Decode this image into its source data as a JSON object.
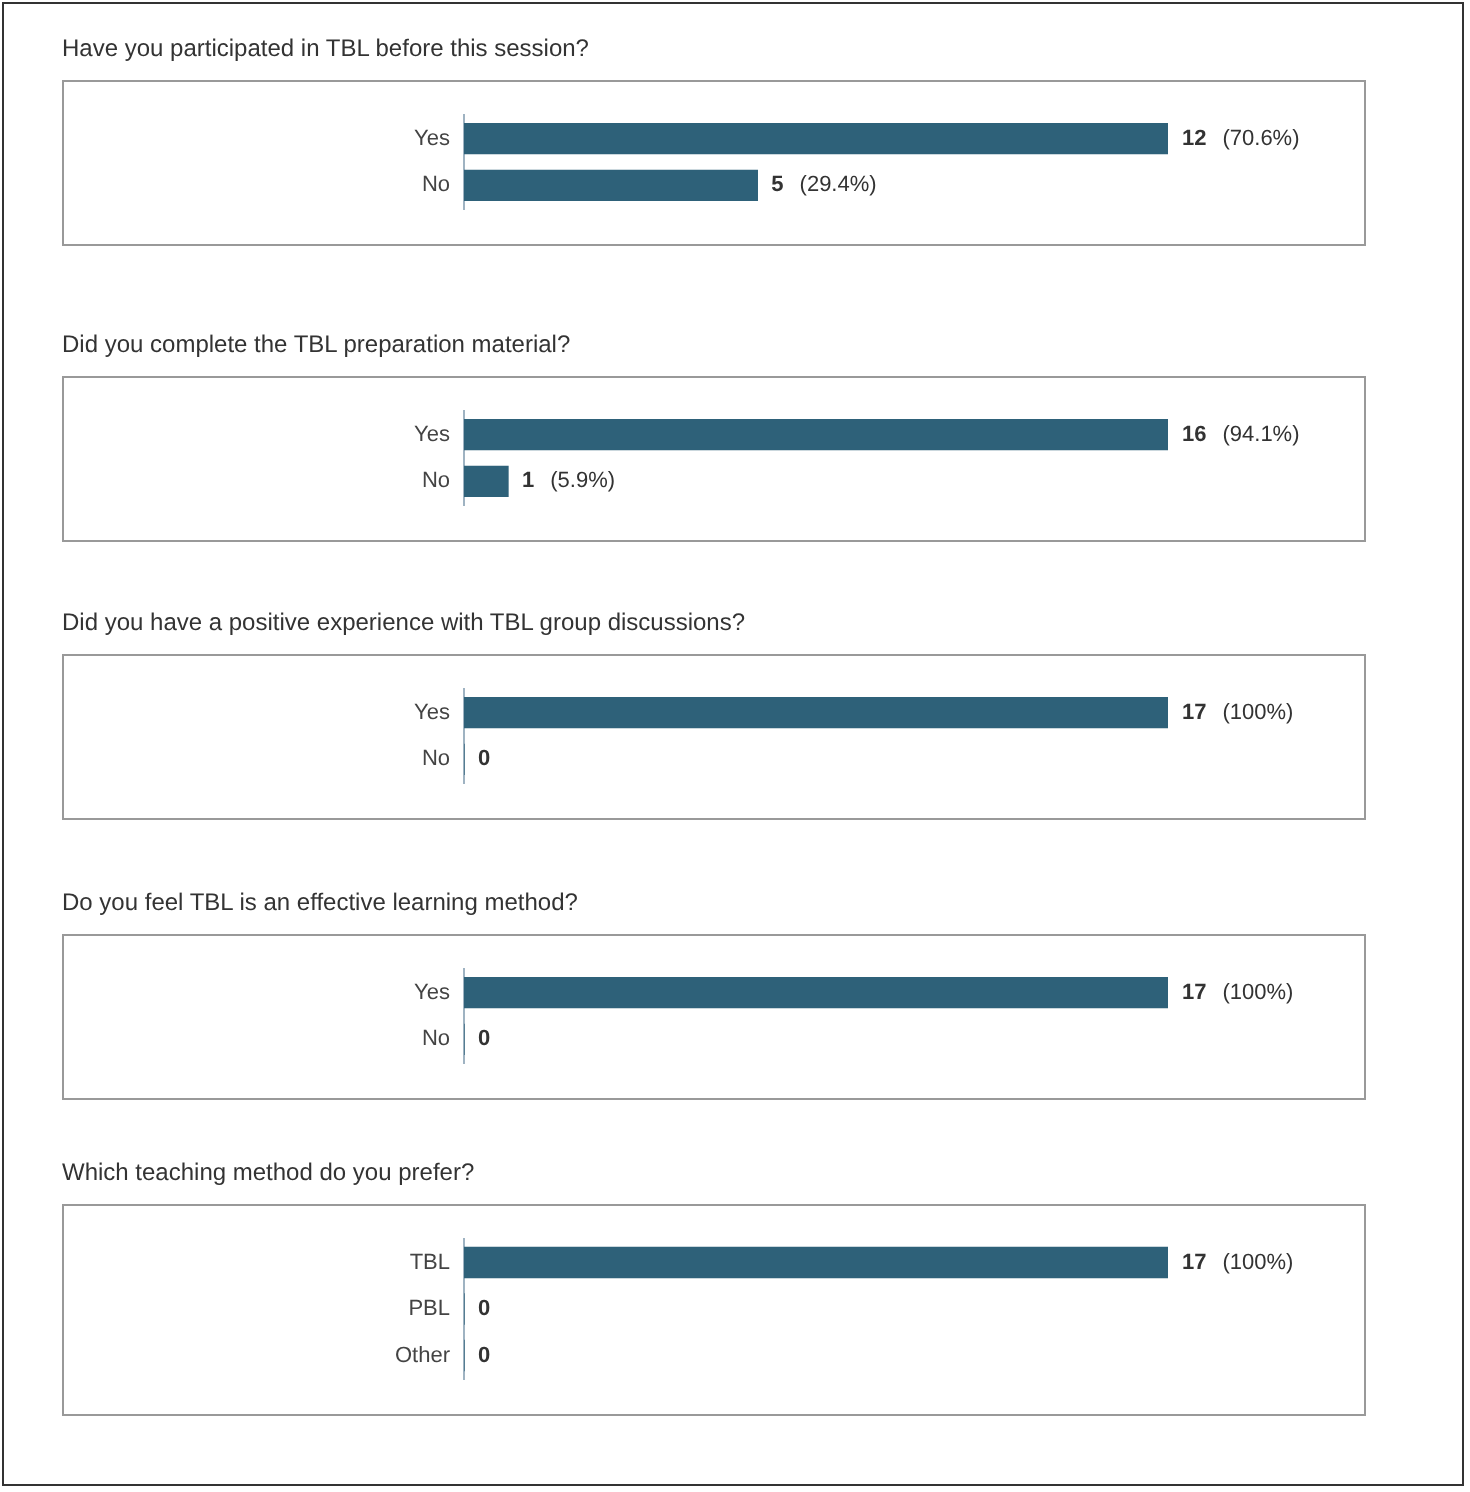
{
  "chart_data": [
    {
      "type": "bar",
      "orientation": "horizontal",
      "title": "Have you participated in TBL before this session?",
      "categories": [
        "Yes",
        "No"
      ],
      "values": [
        12,
        5
      ],
      "color": "#2e6179",
      "value_labels": [
        "12 (70.6%)",
        "5 (29.4%)"
      ],
      "tick_labels": "y"
    },
    {
      "type": "bar",
      "orientation": "horizontal",
      "title": "Did you complete the TBL preparation material?",
      "categories": [
        "Yes",
        "No"
      ],
      "values": [
        16,
        1
      ],
      "color": "#2e6179",
      "value_labels": [
        "16 (94.1%)",
        "1 (5.9%)"
      ],
      "tick_labels": "y"
    },
    {
      "type": "bar",
      "orientation": "horizontal",
      "title": "Did you have a positive experience with TBL group discussions?",
      "categories": [
        "Yes",
        "No"
      ],
      "values": [
        17,
        0
      ],
      "color": "#2e6179",
      "value_labels": [
        "17 (100%)",
        "0"
      ],
      "tick_labels": "y"
    },
    {
      "type": "bar",
      "orientation": "horizontal",
      "title": "Do you feel TBL is an effective learning method?",
      "categories": [
        "Yes",
        "No"
      ],
      "values": [
        17,
        0
      ],
      "color": "#2e6179",
      "value_labels": [
        "17 (100%)",
        "0"
      ],
      "tick_labels": "y"
    },
    {
      "type": "bar",
      "orientation": "horizontal",
      "title": "Which teaching method do you prefer?",
      "categories": [
        "TBL",
        "PBL",
        "Other"
      ],
      "values": [
        17,
        0,
        0
      ],
      "color": "#2e6179",
      "value_labels": [
        "17 (100%)",
        "0",
        "0"
      ],
      "tick_labels": "y"
    }
  ]
}
